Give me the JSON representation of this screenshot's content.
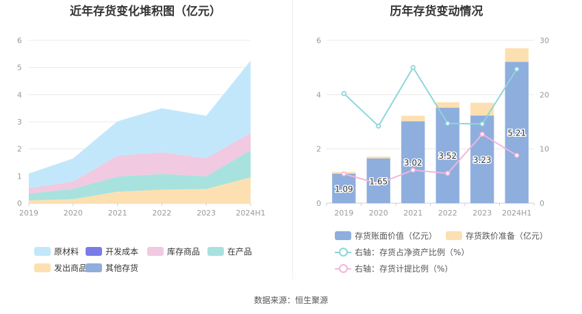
{
  "source_label": "数据来源：恒生聚源",
  "chart_data": [
    {
      "type": "area",
      "stacked": true,
      "title": "近年存货变化堆积图（亿元）",
      "categories": [
        "2019",
        "2020",
        "2021",
        "2022",
        "2023",
        "2024H1"
      ],
      "ylim": [
        0,
        6
      ],
      "yticks": [
        "0",
        "1",
        "2",
        "3",
        "4",
        "5",
        "6"
      ],
      "grid": true,
      "legend_position": "bottom",
      "series": [
        {
          "name": "发出商品",
          "color": "#fde0b1",
          "values": [
            0.1,
            0.15,
            0.42,
            0.5,
            0.52,
            0.95
          ]
        },
        {
          "name": "在产品",
          "color": "#a8e2de",
          "values": [
            0.25,
            0.38,
            0.56,
            0.58,
            0.47,
            1.0
          ]
        },
        {
          "name": "库存商品",
          "color": "#f1c9e1",
          "values": [
            0.2,
            0.27,
            0.77,
            0.79,
            0.67,
            0.64
          ]
        },
        {
          "name": "开发成本",
          "color": "#7b7be8",
          "values": [
            0,
            0,
            0,
            0,
            0,
            0
          ]
        },
        {
          "name": "其他存货",
          "color": "#8eaede",
          "values": [
            0,
            0,
            0,
            0,
            0,
            0
          ]
        },
        {
          "name": "原材料",
          "color": "#c2e7fb",
          "values": [
            0.54,
            0.85,
            1.27,
            1.63,
            1.56,
            2.66
          ]
        }
      ],
      "legend_order": [
        "原材料",
        "开发成本",
        "库存商品",
        "在产品",
        "发出商品",
        "其他存货"
      ]
    },
    {
      "type": "bar",
      "stacked": true,
      "title": "历年存货变动情况",
      "categories": [
        "2019",
        "2020",
        "2021",
        "2022",
        "2023",
        "2024H1"
      ],
      "ylim": [
        0,
        6
      ],
      "yticks": [
        "0",
        "2",
        "4",
        "6"
      ],
      "y2lim": [
        0,
        30
      ],
      "y2ticks": [
        "0",
        "10",
        "20",
        "30"
      ],
      "grid": true,
      "legend_position": "bottom",
      "series": [
        {
          "name": "存货账面价值（亿元）",
          "color": "#8eaede",
          "values": [
            1.09,
            1.65,
            3.02,
            3.52,
            3.23,
            5.21
          ],
          "labels": [
            "1.09",
            "1.65",
            "3.02",
            "3.52",
            "3.23",
            "5.21"
          ]
        },
        {
          "name": "存货跌价准备（亿元）",
          "color": "#fde0b1",
          "values": [
            0.06,
            0.07,
            0.2,
            0.2,
            0.47,
            0.5
          ]
        }
      ],
      "line_series": [
        {
          "name": "右轴：存货占净资产比例（%）",
          "color": "#8dd6d8",
          "axis": "right",
          "values": [
            20.2,
            14.2,
            25.0,
            14.7,
            14.6,
            24.7
          ]
        },
        {
          "name": "右轴：存货计提比例（%）",
          "color": "#f2b6da",
          "axis": "right",
          "values": [
            5.4,
            3.6,
            6.1,
            5.5,
            12.7,
            8.8
          ]
        }
      ]
    }
  ]
}
